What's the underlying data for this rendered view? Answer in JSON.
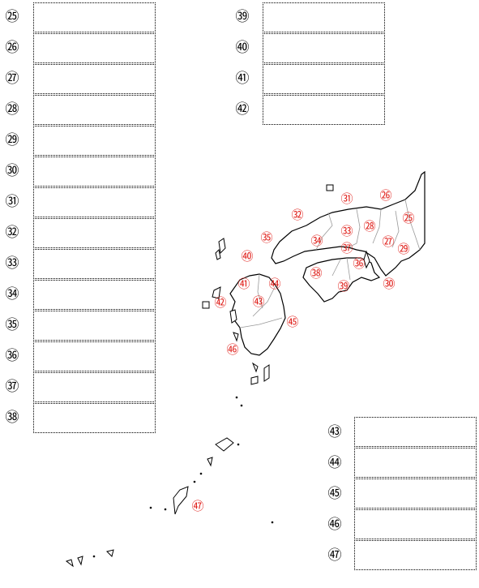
{
  "columns": {
    "left": {
      "numbers": [
        "㉕",
        "㉖",
        "㉗",
        "㉘",
        "㉙",
        "㉚",
        "㉛",
        "㉜",
        "㉝",
        "㉞",
        "㉟",
        "㊱",
        "㊲",
        "㊳"
      ]
    },
    "upper_right": {
      "numbers": [
        "㊴",
        "㊵",
        "㊶",
        "㊷"
      ]
    },
    "lower_right": {
      "numbers": [
        "㊸",
        "㊹",
        "㊺",
        "㊻",
        "㊼"
      ]
    }
  },
  "map_labels": [
    {
      "text": "㉖"
    },
    {
      "text": "㉛"
    },
    {
      "text": "㉜"
    },
    {
      "text": "㉕"
    },
    {
      "text": "㉝"
    },
    {
      "text": "㉘"
    },
    {
      "text": "㉟"
    },
    {
      "text": "㉞"
    },
    {
      "text": "㉗"
    },
    {
      "text": "㉙"
    },
    {
      "text": "㊲"
    },
    {
      "text": "㊵"
    },
    {
      "text": "㊱"
    },
    {
      "text": "㊳"
    },
    {
      "text": "㊶"
    },
    {
      "text": "㊹"
    },
    {
      "text": "㊴"
    },
    {
      "text": "㉚"
    },
    {
      "text": "㊷"
    },
    {
      "text": "㊸"
    },
    {
      "text": "㊺"
    },
    {
      "text": "㊻"
    },
    {
      "text": "㊼"
    }
  ],
  "colors": {
    "label_red": "#e0201b",
    "border": "#000000",
    "prefecture_line": "#999999"
  }
}
